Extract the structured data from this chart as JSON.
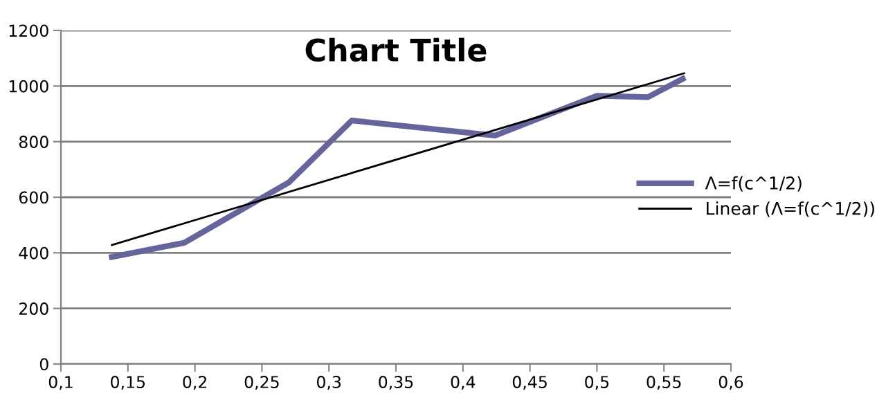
{
  "chart_data": {
    "type": "line",
    "title": "Chart Title",
    "series": [
      {
        "name": "Λ=f(c^1/2)",
        "color": "#65659c",
        "x": [
          0.138,
          0.192,
          0.27,
          0.317,
          0.424,
          0.5,
          0.538,
          0.564
        ],
        "values": [
          385,
          436,
          653,
          876,
          822,
          965,
          960,
          1026
        ]
      },
      {
        "name": "Linear (Λ=f(c^1/2))",
        "color": "#000000",
        "x": [
          0.138,
          0.565
        ],
        "values": [
          428,
          1046
        ]
      }
    ],
    "xlim": [
      0.1,
      0.6
    ],
    "xticks": [
      {
        "value": 0.1,
        "label": "0,1"
      },
      {
        "value": 0.15,
        "label": "0,15"
      },
      {
        "value": 0.2,
        "label": "0,2"
      },
      {
        "value": 0.25,
        "label": "0,25"
      },
      {
        "value": 0.3,
        "label": "0,3"
      },
      {
        "value": 0.35,
        "label": "0,35"
      },
      {
        "value": 0.4,
        "label": "0,4"
      },
      {
        "value": 0.45,
        "label": "0,45"
      },
      {
        "value": 0.5,
        "label": "0,5"
      },
      {
        "value": 0.55,
        "label": "0,55"
      },
      {
        "value": 0.6,
        "label": "0,6"
      }
    ],
    "ylim": [
      0,
      1200
    ],
    "yticks": [
      0,
      200,
      400,
      600,
      800,
      1000,
      1200
    ],
    "grid": "y",
    "legend": "right",
    "marker": "none",
    "line_style": "solid"
  }
}
